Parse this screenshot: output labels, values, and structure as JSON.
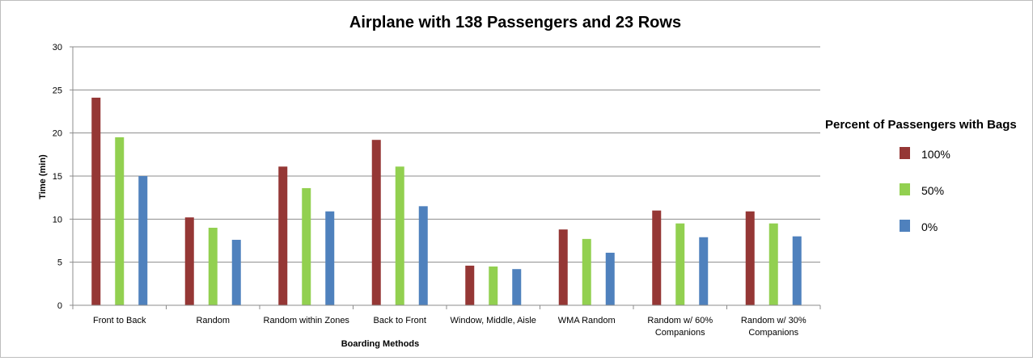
{
  "chart_data": {
    "type": "bar",
    "title": "Airplane with 138 Passengers and 23 Rows",
    "xlabel": "Boarding Methods",
    "ylabel": "Time (min)",
    "ylim": [
      0,
      30
    ],
    "yticks": [
      0,
      5,
      10,
      15,
      20,
      25,
      30
    ],
    "grid": true,
    "legend_title": "Percent of Passengers with Bags",
    "legend_position": "right",
    "categories": [
      [
        "Front to Back"
      ],
      [
        "Random"
      ],
      [
        "Random within Zones"
      ],
      [
        "Back to Front"
      ],
      [
        "Window, Middle, Aisle"
      ],
      [
        "WMA Random"
      ],
      [
        "Random w/ 60%",
        "Companions"
      ],
      [
        "Random w/ 30%",
        "Companions"
      ]
    ],
    "series": [
      {
        "name": "100%",
        "color": "#953735",
        "values": [
          24.1,
          10.2,
          16.1,
          19.2,
          4.6,
          8.8,
          11.0,
          10.9
        ]
      },
      {
        "name": "50%",
        "color": "#92d050",
        "values": [
          19.5,
          9.0,
          13.6,
          16.1,
          4.5,
          7.7,
          9.5,
          9.5
        ]
      },
      {
        "name": "0%",
        "color": "#4f81bd",
        "values": [
          15.0,
          7.6,
          10.9,
          11.5,
          4.2,
          6.1,
          7.9,
          8.0
        ]
      }
    ]
  }
}
